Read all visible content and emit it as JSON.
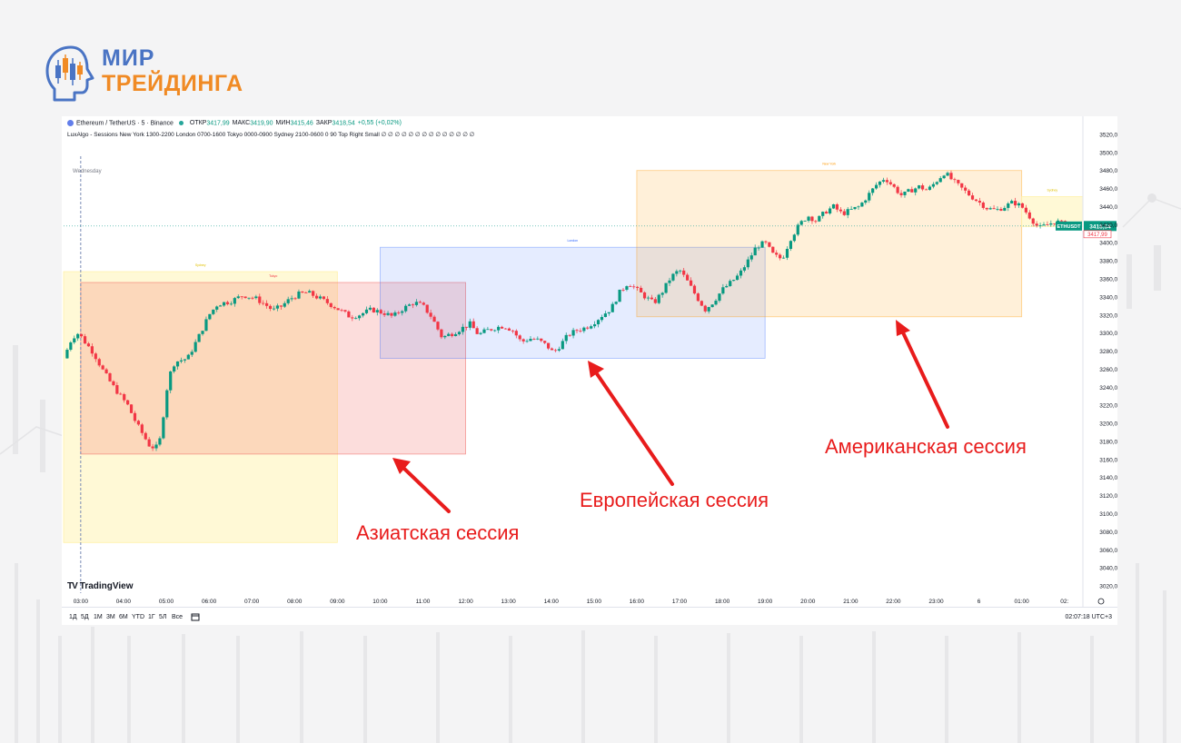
{
  "brand": {
    "line1": "МИР",
    "line2": "ТРЕЙДИНГА"
  },
  "header": {
    "symbol": "Ethereum / TetherUS · 5 · Binance",
    "open_label": "ОТКР",
    "open": "3417,99",
    "high_label": "МАКС",
    "high": "3419,90",
    "low_label": "МИН",
    "low": "3415,46",
    "close_label": "ЗАКР",
    "close": "3418,54",
    "change": "+0,55 (+0,02%)",
    "indicator": "LuxAlgo - Sessions New York 1300-2200 London 0700-1600 Tokyo 0000-0900 Sydney 2100-0600 0 90 Top Right Small  ∅ ∅ ∅ ∅ ∅ ∅ ∅ ∅ ∅ ∅ ∅ ∅ ∅ ∅"
  },
  "day_label": "Wednesday",
  "tradingview_label": "TradingView",
  "timeframes": [
    "1Д",
    "5Д",
    "1М",
    "3М",
    "6М",
    "YTD",
    "1Г",
    "5Л",
    "Все"
  ],
  "clock": "02:07:18 UTC+3",
  "annotations": {
    "asia": "Азиатская сессия",
    "europe": "Европейская сессия",
    "america": "Американская сессия"
  },
  "colors": {
    "up": "#089981",
    "down": "#f23645",
    "arrow": "#e81c1c",
    "accent_orange": "#f08a24",
    "accent_blue": "#4a74c4"
  },
  "chart_data": {
    "type": "candlestick",
    "y_ticks": [
      3520,
      3500,
      3480,
      3460,
      3440,
      3420,
      3400,
      3380,
      3360,
      3340,
      3320,
      3300,
      3280,
      3260,
      3240,
      3220,
      3200,
      3180,
      3160,
      3140,
      3120,
      3100,
      3080,
      3060,
      3040,
      3020
    ],
    "y_tick_labels": [
      "3520,00",
      "3500,00",
      "3480,00",
      "3460,00",
      "3440,00",
      "3420,00",
      "3400,00",
      "3380,00",
      "3360,00",
      "3340,00",
      "3320,00",
      "3300,00",
      "3280,00",
      "3260,00",
      "3240,00",
      "3220,00",
      "3200,00",
      "3180,00",
      "3160,00",
      "3140,00",
      "3120,00",
      "3100,00",
      "3080,00",
      "3060,00",
      "3040,00",
      "3020,00"
    ],
    "ylim": [
      3012,
      3530
    ],
    "x_ticks": [
      "03:00",
      "04:00",
      "05:00",
      "06:00",
      "07:00",
      "08:00",
      "09:00",
      "10:00",
      "11:00",
      "12:00",
      "13:00",
      "14:00",
      "15:00",
      "16:00",
      "17:00",
      "18:00",
      "19:00",
      "20:00",
      "21:00",
      "22:00",
      "23:00",
      "6",
      "01:00",
      "02:"
    ],
    "x_hours": [
      3,
      4,
      5,
      6,
      7,
      8,
      9,
      10,
      11,
      12,
      13,
      14,
      15,
      16,
      17,
      18,
      19,
      20,
      21,
      22,
      23,
      24,
      25,
      26
    ],
    "xlim_hours": [
      2.6,
      26.43
    ],
    "last_price_label": "3418,54",
    "last_price": 3418.54,
    "open_price_label": "3417,99",
    "ticker_label": "ETHUSDT",
    "path": [
      [
        2.6,
        3272
      ],
      [
        2.8,
        3295
      ],
      [
        2.95,
        3300
      ],
      [
        3.1,
        3290
      ],
      [
        3.3,
        3278
      ],
      [
        3.5,
        3260
      ],
      [
        3.7,
        3245
      ],
      [
        3.9,
        3232
      ],
      [
        4.1,
        3220
      ],
      [
        4.3,
        3200
      ],
      [
        4.45,
        3188
      ],
      [
        4.6,
        3176
      ],
      [
        4.75,
        3172
      ],
      [
        4.85,
        3182
      ],
      [
        4.95,
        3215
      ],
      [
        5.05,
        3250
      ],
      [
        5.2,
        3268
      ],
      [
        5.5,
        3272
      ],
      [
        5.8,
        3300
      ],
      [
        6.0,
        3320
      ],
      [
        6.2,
        3332
      ],
      [
        6.5,
        3335
      ],
      [
        6.8,
        3342
      ],
      [
        7.1,
        3338
      ],
      [
        7.3,
        3332
      ],
      [
        7.5,
        3325
      ],
      [
        7.7,
        3330
      ],
      [
        7.9,
        3338
      ],
      [
        8.1,
        3343
      ],
      [
        8.3,
        3345
      ],
      [
        8.6,
        3338
      ],
      [
        8.9,
        3330
      ],
      [
        9.1,
        3324
      ],
      [
        9.3,
        3318
      ],
      [
        9.5,
        3320
      ],
      [
        9.8,
        3326
      ],
      [
        10.1,
        3322
      ],
      [
        10.3,
        3318
      ],
      [
        10.5,
        3326
      ],
      [
        10.8,
        3334
      ],
      [
        11.0,
        3330
      ],
      [
        11.2,
        3318
      ],
      [
        11.45,
        3295
      ],
      [
        11.7,
        3300
      ],
      [
        11.9,
        3305
      ],
      [
        12.1,
        3310
      ],
      [
        12.3,
        3298
      ],
      [
        12.5,
        3303
      ],
      [
        12.7,
        3306
      ],
      [
        12.9,
        3308
      ],
      [
        13.1,
        3303
      ],
      [
        13.3,
        3290
      ],
      [
        13.5,
        3294
      ],
      [
        13.7,
        3292
      ],
      [
        13.9,
        3286
      ],
      [
        14.05,
        3278
      ],
      [
        14.2,
        3286
      ],
      [
        14.4,
        3298
      ],
      [
        14.6,
        3303
      ],
      [
        14.8,
        3306
      ],
      [
        15.0,
        3312
      ],
      [
        15.2,
        3320
      ],
      [
        15.4,
        3327
      ],
      [
        15.6,
        3345
      ],
      [
        15.8,
        3356
      ],
      [
        16.0,
        3348
      ],
      [
        16.2,
        3340
      ],
      [
        16.4,
        3333
      ],
      [
        16.6,
        3346
      ],
      [
        16.8,
        3362
      ],
      [
        17.0,
        3370
      ],
      [
        17.2,
        3356
      ],
      [
        17.4,
        3340
      ],
      [
        17.6,
        3326
      ],
      [
        17.8,
        3335
      ],
      [
        18.0,
        3348
      ],
      [
        18.2,
        3356
      ],
      [
        18.4,
        3365
      ],
      [
        18.6,
        3380
      ],
      [
        18.8,
        3396
      ],
      [
        19.0,
        3400
      ],
      [
        19.2,
        3386
      ],
      [
        19.4,
        3382
      ],
      [
        19.6,
        3405
      ],
      [
        19.8,
        3420
      ],
      [
        20.0,
        3430
      ],
      [
        20.2,
        3424
      ],
      [
        20.4,
        3434
      ],
      [
        20.6,
        3440
      ],
      [
        20.8,
        3432
      ],
      [
        21.0,
        3436
      ],
      [
        21.2,
        3440
      ],
      [
        21.4,
        3452
      ],
      [
        21.6,
        3464
      ],
      [
        21.8,
        3472
      ],
      [
        22.0,
        3462
      ],
      [
        22.2,
        3452
      ],
      [
        22.4,
        3458
      ],
      [
        22.6,
        3462
      ],
      [
        22.8,
        3458
      ],
      [
        23.0,
        3468
      ],
      [
        23.2,
        3478
      ],
      [
        23.4,
        3468
      ],
      [
        23.6,
        3460
      ],
      [
        23.8,
        3452
      ],
      [
        24.0,
        3445
      ],
      [
        24.2,
        3438
      ],
      [
        24.4,
        3436
      ],
      [
        24.6,
        3440
      ],
      [
        24.8,
        3445
      ],
      [
        25.0,
        3440
      ],
      [
        25.2,
        3428
      ],
      [
        25.4,
        3416
      ],
      [
        25.6,
        3420
      ],
      [
        25.8,
        3424
      ],
      [
        25.95,
        3421
      ],
      [
        26.05,
        3418.54
      ]
    ],
    "sessions": [
      {
        "name": "Sydney",
        "start_hour": 2.6,
        "end_hour": 9.0,
        "high": 3368,
        "low": 3068,
        "fill": "#fff9d6",
        "stroke": "#fff1a8",
        "label_color": "#e0c000"
      },
      {
        "name": "Tokyo",
        "start_hour": 3.0,
        "end_hour": 12.0,
        "high": 3356,
        "low": 3166,
        "fill": "rgba(239,83,80,0.2)",
        "stroke": "rgba(239,83,80,0.55)",
        "label_color": "#f23645"
      },
      {
        "name": "London",
        "start_hour": 10.0,
        "end_hour": 19.0,
        "high": 3395,
        "low": 3272,
        "fill": "rgba(41,98,255,0.12)",
        "stroke": "rgba(41,98,255,0.4)",
        "label_color": "#2962ff"
      },
      {
        "name": "New York",
        "start_hour": 16.0,
        "end_hour": 25.0,
        "high": 3480,
        "low": 3318,
        "fill": "rgba(255,152,0,0.15)",
        "stroke": "rgba(255,152,0,0.45)",
        "label_color": "#ff9800"
      },
      {
        "name": "Sydney",
        "start_hour": 25.0,
        "end_hour": 26.43,
        "high": 3451,
        "low": 3418,
        "fill": "#fff9d6",
        "stroke": "#fff1a8",
        "label_color": "#e0c000"
      }
    ],
    "day_divider_hour": 3.0
  }
}
